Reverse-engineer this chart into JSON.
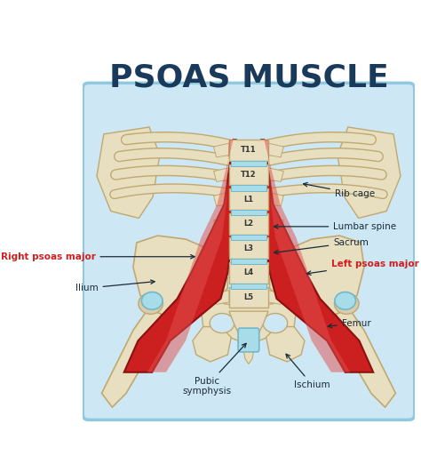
{
  "title": "PSOAS MUSCLE",
  "title_color": "#1a3a5c",
  "background_color": "#ffffff",
  "panel_color": "#cde8f4",
  "panel_border_color": "#90c8e0",
  "bone_color": "#e8dfc0",
  "bone_outline": "#c0a870",
  "muscle_color_main": "#cc2020",
  "muscle_color_light": "#e05050",
  "muscle_color_dark": "#8b1010",
  "muscle_color_highlight": "#f08080",
  "cartilage_color": "#a8dce8",
  "cartilage_outline": "#70b8cc",
  "spine_label_color": "#333333",
  "spine_labels": [
    "T11",
    "T12",
    "L1",
    "L2",
    "L3",
    "L4",
    "L5"
  ],
  "title_fontsize": 26
}
